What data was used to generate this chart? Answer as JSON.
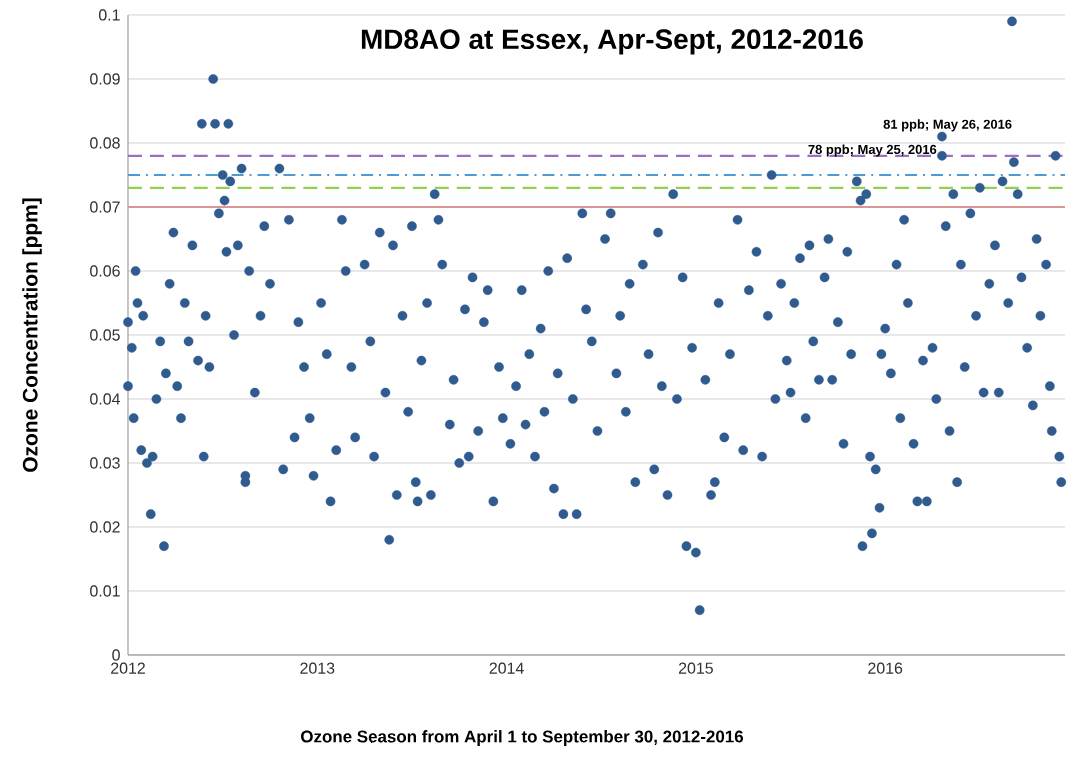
{
  "chart_data": {
    "type": "scatter",
    "title": "MD8AO at Essex, Apr-Sept, 2012-2016",
    "xlabel": "Ozone Season from April 1 to September 30, 2012-2016",
    "ylabel": "Ozone Concentration [ppm]",
    "x": [
      2012.0,
      2012.0,
      2012.02,
      2012.03,
      2012.04,
      2012.05,
      2012.07,
      2012.08,
      2012.1,
      2012.12,
      2012.13,
      2012.15,
      2012.17,
      2012.19,
      2012.2,
      2012.22,
      2012.24,
      2012.26,
      2012.28,
      2012.3,
      2012.32,
      2012.34,
      2012.37,
      2012.39,
      2012.4,
      2012.41,
      2012.43,
      2012.45,
      2012.46,
      2012.48,
      2012.5,
      2012.51,
      2012.52,
      2012.53,
      2012.54,
      2012.56,
      2012.58,
      2012.6,
      2012.62,
      2012.62,
      2012.64,
      2012.67,
      2012.7,
      2012.72,
      2012.75,
      2012.8,
      2012.82,
      2012.85,
      2012.88,
      2012.9,
      2012.93,
      2012.96,
      2012.98,
      2013.02,
      2013.05,
      2013.07,
      2013.1,
      2013.13,
      2013.15,
      2013.18,
      2013.2,
      2013.25,
      2013.28,
      2013.3,
      2013.33,
      2013.36,
      2013.38,
      2013.4,
      2013.42,
      2013.45,
      2013.48,
      2013.5,
      2013.52,
      2013.53,
      2013.55,
      2013.58,
      2013.6,
      2013.62,
      2013.64,
      2013.66,
      2013.7,
      2013.72,
      2013.75,
      2013.78,
      2013.8,
      2013.82,
      2013.85,
      2013.88,
      2013.9,
      2013.93,
      2013.96,
      2013.98,
      2014.02,
      2014.05,
      2014.08,
      2014.1,
      2014.12,
      2014.15,
      2014.18,
      2014.2,
      2014.22,
      2014.25,
      2014.27,
      2014.3,
      2014.32,
      2014.35,
      2014.37,
      2014.4,
      2014.42,
      2014.45,
      2014.48,
      2014.52,
      2014.55,
      2014.58,
      2014.6,
      2014.63,
      2014.65,
      2014.68,
      2014.72,
      2014.75,
      2014.78,
      2014.8,
      2014.82,
      2014.85,
      2014.88,
      2014.9,
      2014.93,
      2014.95,
      2014.98,
      2015.0,
      2015.02,
      2015.05,
      2015.08,
      2015.1,
      2015.12,
      2015.15,
      2015.18,
      2015.22,
      2015.25,
      2015.28,
      2015.32,
      2015.35,
      2015.38,
      2015.4,
      2015.42,
      2015.45,
      2015.48,
      2015.5,
      2015.52,
      2015.55,
      2015.58,
      2015.6,
      2015.62,
      2015.65,
      2015.68,
      2015.7,
      2015.72,
      2015.75,
      2015.78,
      2015.8,
      2015.82,
      2015.85,
      2015.87,
      2015.88,
      2015.9,
      2015.92,
      2015.93,
      2015.95,
      2015.97,
      2015.98,
      2016.0,
      2016.03,
      2016.06,
      2016.08,
      2016.1,
      2016.12,
      2016.15,
      2016.17,
      2016.2,
      2016.22,
      2016.25,
      2016.27,
      2016.3,
      2016.3,
      2016.32,
      2016.34,
      2016.36,
      2016.38,
      2016.4,
      2016.42,
      2016.45,
      2016.48,
      2016.5,
      2016.52,
      2016.55,
      2016.58,
      2016.6,
      2016.62,
      2016.65,
      2016.67,
      2016.68,
      2016.7,
      2016.72,
      2016.75,
      2016.78,
      2016.8,
      2016.82,
      2016.85,
      2016.87,
      2016.88,
      2016.9,
      2016.92,
      2016.93
    ],
    "values": [
      0.042,
      0.052,
      0.048,
      0.037,
      0.06,
      0.055,
      0.032,
      0.053,
      0.03,
      0.022,
      0.031,
      0.04,
      0.049,
      0.017,
      0.044,
      0.058,
      0.066,
      0.042,
      0.037,
      0.055,
      0.049,
      0.064,
      0.046,
      0.083,
      0.031,
      0.053,
      0.045,
      0.09,
      0.083,
      0.069,
      0.075,
      0.071,
      0.063,
      0.083,
      0.074,
      0.05,
      0.064,
      0.076,
      0.027,
      0.028,
      0.06,
      0.041,
      0.053,
      0.067,
      0.058,
      0.076,
      0.029,
      0.068,
      0.034,
      0.052,
      0.045,
      0.037,
      0.028,
      0.055,
      0.047,
      0.024,
      0.032,
      0.068,
      0.06,
      0.045,
      0.034,
      0.061,
      0.049,
      0.031,
      0.066,
      0.041,
      0.018,
      0.064,
      0.025,
      0.053,
      0.038,
      0.067,
      0.027,
      0.024,
      0.046,
      0.055,
      0.025,
      0.072,
      0.068,
      0.061,
      0.036,
      0.043,
      0.03,
      0.054,
      0.031,
      0.059,
      0.035,
      0.052,
      0.057,
      0.024,
      0.045,
      0.037,
      0.033,
      0.042,
      0.057,
      0.036,
      0.047,
      0.031,
      0.051,
      0.038,
      0.06,
      0.026,
      0.044,
      0.022,
      0.062,
      0.04,
      0.022,
      0.069,
      0.054,
      0.049,
      0.035,
      0.065,
      0.069,
      0.044,
      0.053,
      0.038,
      0.058,
      0.027,
      0.061,
      0.047,
      0.029,
      0.066,
      0.042,
      0.025,
      0.072,
      0.04,
      0.059,
      0.017,
      0.048,
      0.016,
      0.007,
      0.043,
      0.025,
      0.027,
      0.055,
      0.034,
      0.047,
      0.068,
      0.032,
      0.057,
      0.063,
      0.031,
      0.053,
      0.075,
      0.04,
      0.058,
      0.046,
      0.041,
      0.055,
      0.062,
      0.037,
      0.064,
      0.049,
      0.043,
      0.059,
      0.065,
      0.043,
      0.052,
      0.033,
      0.063,
      0.047,
      0.074,
      0.071,
      0.017,
      0.072,
      0.031,
      0.019,
      0.029,
      0.023,
      0.047,
      0.051,
      0.044,
      0.061,
      0.037,
      0.068,
      0.055,
      0.033,
      0.024,
      0.046,
      0.024,
      0.048,
      0.04,
      0.081,
      0.078,
      0.067,
      0.035,
      0.072,
      0.027,
      0.061,
      0.045,
      0.069,
      0.053,
      0.073,
      0.041,
      0.058,
      0.064,
      0.041,
      0.074,
      0.055,
      0.099,
      0.077,
      0.072,
      0.059,
      0.048,
      0.039,
      0.065,
      0.053,
      0.061,
      0.042,
      0.035,
      0.078,
      0.031,
      0.027
    ],
    "color": "#2f5b8f",
    "marker": "circle",
    "xlim": [
      2012,
      2016.95
    ],
    "ylim": [
      0,
      0.1
    ],
    "xticks": [
      2012,
      2013,
      2014,
      2015,
      2016
    ],
    "yticks": [
      0,
      0.01,
      0.02,
      0.03,
      0.04,
      0.05,
      0.06,
      0.07,
      0.08,
      0.09,
      0.1
    ],
    "grid": "y",
    "ref_lines": [
      {
        "axis": "y",
        "value": 0.07,
        "color": "#d99694",
        "line_style": "solid"
      },
      {
        "axis": "y",
        "value": 0.073,
        "color": "#92d050",
        "line_style": "dashed"
      },
      {
        "axis": "y",
        "value": 0.075,
        "color": "#4a9bd8",
        "line_style": "dashdot"
      },
      {
        "axis": "y",
        "value": 0.078,
        "color": "#9e6ec0",
        "line_style": "dashed"
      }
    ],
    "annotations": [
      {
        "text": "81 ppb; May 26, 2016",
        "x": 2016.3,
        "y": 0.081
      },
      {
        "text": "78 ppb; May 25, 2016",
        "x": 2016.3,
        "y": 0.078
      }
    ]
  }
}
